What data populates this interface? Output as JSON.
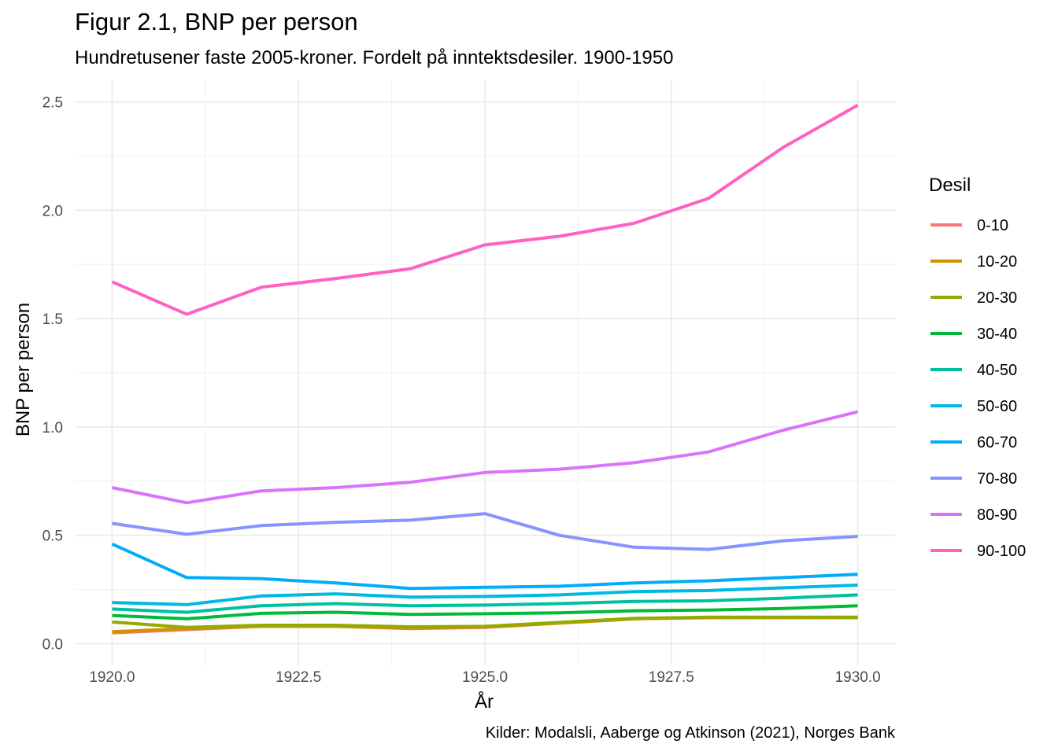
{
  "title": "Figur 2.1, BNP per person",
  "subtitle": "Hundretusener faste 2005-kroner. Fordelt på inntektsdesiler. 1900-1950",
  "caption": "Kilder: Modalsli, Aaberge og Atkinson (2021), Norges Bank",
  "chart_data": {
    "type": "line",
    "xlabel": "År",
    "ylabel": "BNP per person",
    "xlim": [
      1919.5,
      1930.5
    ],
    "ylim": [
      -0.1,
      2.6
    ],
    "x_ticks": [
      1920.0,
      1922.5,
      1925.0,
      1927.5,
      1930.0
    ],
    "x_tick_labels": [
      "1920.0",
      "1922.5",
      "1925.0",
      "1927.5",
      "1930.0"
    ],
    "y_ticks": [
      0.0,
      0.5,
      1.0,
      1.5,
      2.0,
      2.5
    ],
    "y_tick_labels": [
      "0.0",
      "0.5",
      "1.0",
      "1.5",
      "2.0",
      "2.5"
    ],
    "grid": true,
    "legend_title": "Desil",
    "legend_position": "right",
    "x": [
      1920,
      1921,
      1922,
      1923,
      1924,
      1925,
      1926,
      1927,
      1928,
      1929,
      1930
    ],
    "series": [
      {
        "name": "0-10",
        "color": "#F8766D",
        "values": [
          0.05,
          0.065,
          0.08,
          0.08,
          0.07,
          0.075,
          0.095,
          0.115,
          0.12,
          0.12,
          0.12
        ]
      },
      {
        "name": "10-20",
        "color": "#D39200",
        "values": [
          0.055,
          0.07,
          0.08,
          0.08,
          0.072,
          0.078,
          0.095,
          0.115,
          0.12,
          0.12,
          0.12
        ]
      },
      {
        "name": "20-30",
        "color": "#93AA00",
        "values": [
          0.1,
          0.075,
          0.085,
          0.085,
          0.078,
          0.08,
          0.098,
          0.117,
          0.122,
          0.122,
          0.122
        ]
      },
      {
        "name": "30-40",
        "color": "#00BA38",
        "values": [
          0.13,
          0.115,
          0.14,
          0.145,
          0.135,
          0.138,
          0.142,
          0.152,
          0.155,
          0.162,
          0.175
        ]
      },
      {
        "name": "40-50",
        "color": "#00C19F",
        "values": [
          0.16,
          0.145,
          0.175,
          0.185,
          0.175,
          0.178,
          0.185,
          0.195,
          0.198,
          0.21,
          0.225
        ]
      },
      {
        "name": "50-60",
        "color": "#00B9E3",
        "values": [
          0.19,
          0.18,
          0.22,
          0.23,
          0.215,
          0.218,
          0.225,
          0.24,
          0.245,
          0.258,
          0.27
        ]
      },
      {
        "name": "60-70",
        "color": "#00ADFA",
        "values": [
          0.46,
          0.305,
          0.3,
          0.28,
          0.255,
          0.26,
          0.265,
          0.28,
          0.29,
          0.305,
          0.32
        ]
      },
      {
        "name": "70-80",
        "color": "#8594FF",
        "values": [
          0.555,
          0.505,
          0.545,
          0.56,
          0.57,
          0.6,
          0.5,
          0.445,
          0.435,
          0.475,
          0.495
        ]
      },
      {
        "name": "80-90",
        "color": "#DB72FB",
        "values": [
          0.72,
          0.65,
          0.705,
          0.72,
          0.745,
          0.79,
          0.805,
          0.835,
          0.885,
          0.985,
          1.07
        ]
      },
      {
        "name": "90-100",
        "color": "#FF61C3",
        "values": [
          1.67,
          1.52,
          1.645,
          1.685,
          1.73,
          1.84,
          1.88,
          1.94,
          2.055,
          2.29,
          2.485
        ]
      }
    ]
  }
}
